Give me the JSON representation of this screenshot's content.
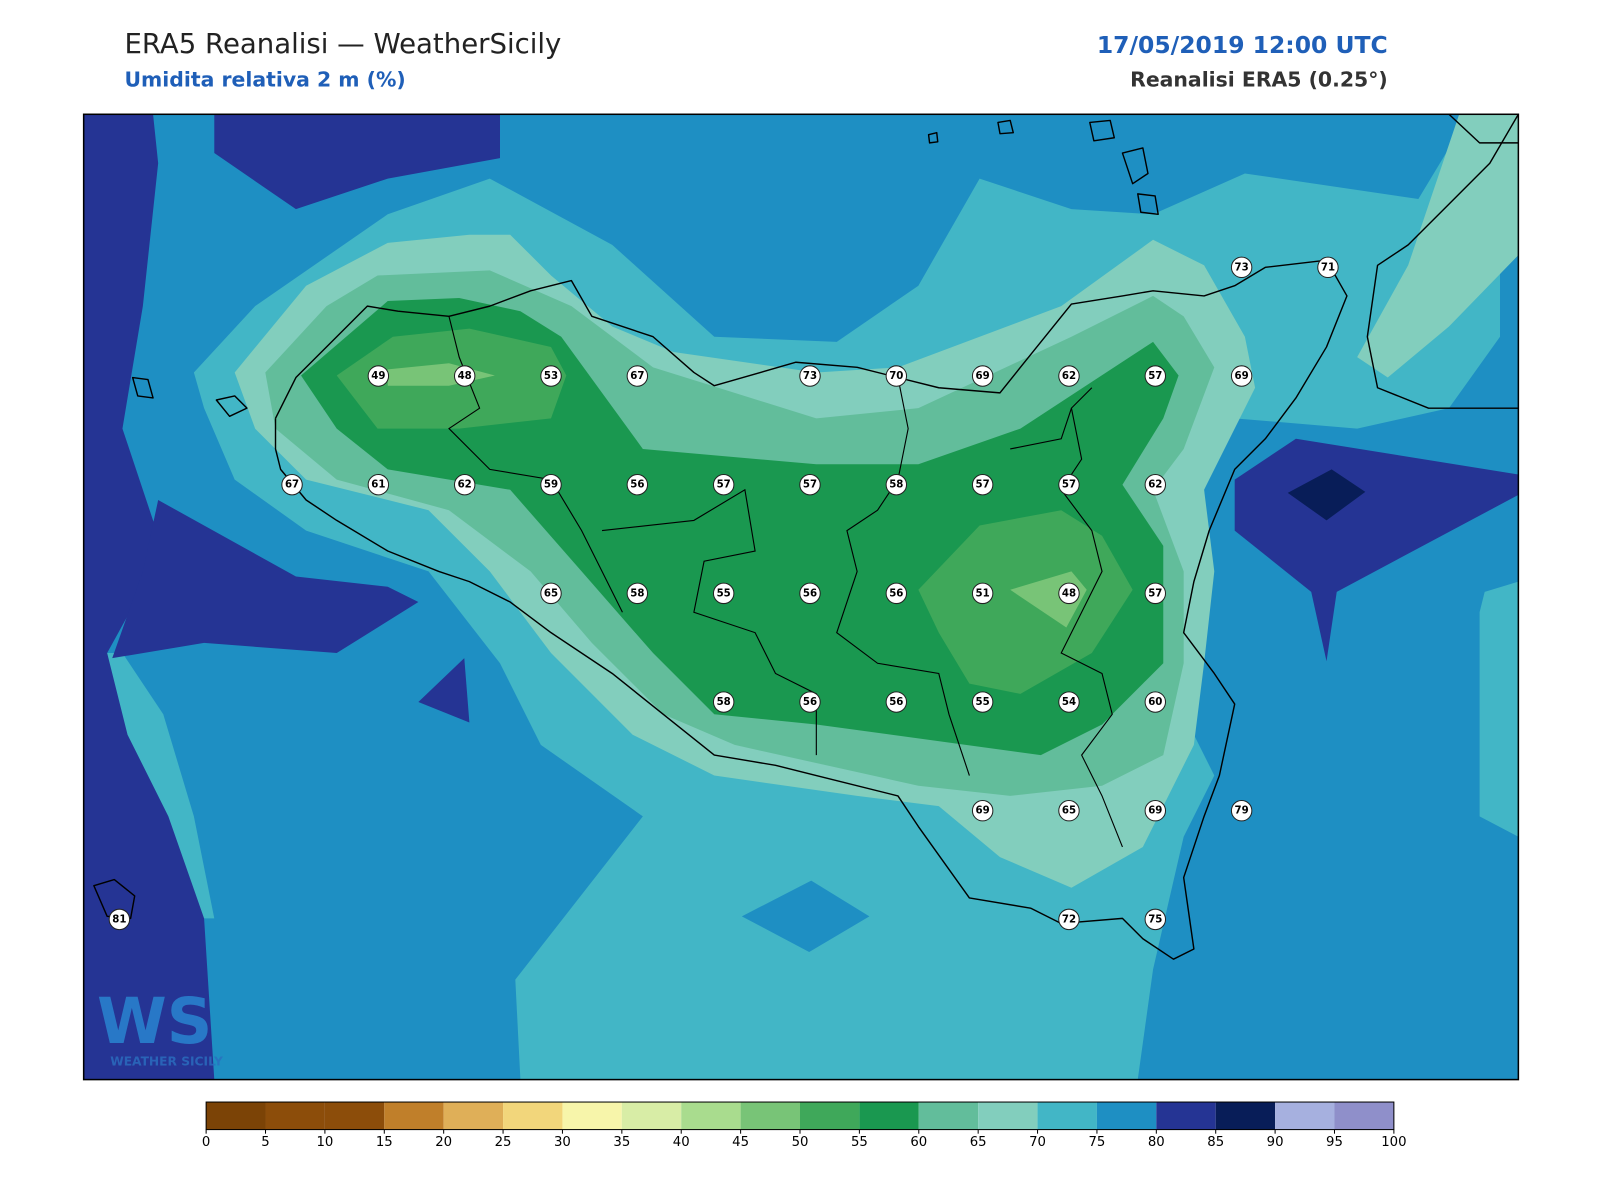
{
  "header": {
    "title": "ERA5 Reanalisi — WeatherSicily",
    "subtitle": "Umidita relativa 2 m (%)",
    "datetime": "17/05/2019 12:00 UTC",
    "source": "Reanalisi ERA5 (0.25°)"
  },
  "stations": [
    [
      null,
      null,
      null,
      null,
      null,
      null,
      null,
      null,
      null,
      null,
      null,
      null,
      null,
      73,
      71
    ],
    [
      null,
      null,
      null,
      49,
      48,
      53,
      67,
      null,
      73,
      70,
      69,
      62,
      57,
      69,
      null
    ],
    [
      null,
      null,
      67,
      61,
      62,
      59,
      56,
      57,
      57,
      58,
      57,
      57,
      62,
      null,
      null
    ],
    [
      null,
      null,
      null,
      null,
      null,
      65,
      58,
      55,
      56,
      56,
      51,
      48,
      57,
      null,
      null
    ],
    [
      null,
      null,
      null,
      null,
      null,
      null,
      null,
      58,
      56,
      56,
      55,
      54,
      60,
      null,
      null
    ],
    [
      null,
      null,
      null,
      null,
      null,
      null,
      null,
      null,
      null,
      null,
      69,
      65,
      69,
      79,
      null
    ],
    [
      81,
      null,
      null,
      null,
      null,
      null,
      null,
      null,
      null,
      null,
      null,
      72,
      75,
      null,
      null
    ]
  ],
  "colorbar": {
    "ticks": [
      0,
      5,
      10,
      15,
      20,
      25,
      30,
      35,
      40,
      45,
      50,
      55,
      60,
      65,
      70,
      75,
      80,
      85,
      90,
      95,
      100
    ],
    "colors": [
      "#7b4306",
      "#8c4d0a",
      "#8c4d0a",
      "#c07f2a",
      "#dfaf58",
      "#f2d67b",
      "#f7f5aa",
      "#d8eda6",
      "#a9dc8e",
      "#78c477",
      "#3fa85a",
      "#1a9850",
      "#62bd9b",
      "#82cebd",
      "#42b6c6",
      "#1e8fc3",
      "#253494",
      "#081d58",
      "#a6b0df",
      "#8f8fca"
    ]
  },
  "logo": {
    "mark": "WS",
    "name": "WEATHER SICILY"
  }
}
